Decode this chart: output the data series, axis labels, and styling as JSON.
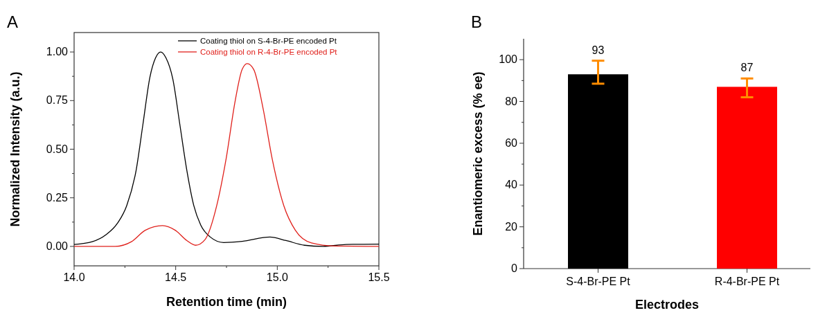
{
  "chart_data": [
    {
      "type": "line",
      "title": "A",
      "xlabel": "Retention time (min)",
      "ylabel": "Normalized Intensity (a.u.)",
      "xlim": [
        14.0,
        15.5
      ],
      "ylim": [
        -0.1,
        1.1
      ],
      "xticks": [
        {
          "value": 14.0,
          "label": "14.0"
        },
        {
          "value": 14.25,
          "label": null
        },
        {
          "value": 14.5,
          "label": "14.5"
        },
        {
          "value": 14.75,
          "label": null
        },
        {
          "value": 15.0,
          "label": "15.0"
        },
        {
          "value": 15.25,
          "label": null
        },
        {
          "value": 15.5,
          "label": "15.5"
        }
      ],
      "yticks": [
        {
          "value": 0,
          "label": "0.00"
        },
        {
          "value": 0.125,
          "label": null
        },
        {
          "value": 0.25,
          "label": "0.25"
        },
        {
          "value": 0.375,
          "label": null
        },
        {
          "value": 0.5,
          "label": "0.50"
        },
        {
          "value": 0.625,
          "label": null
        },
        {
          "value": 0.75,
          "label": "0.75"
        },
        {
          "value": 0.875,
          "label": null
        },
        {
          "value": 1.0,
          "label": "1.00"
        }
      ],
      "legend": "top right",
      "series": [
        {
          "name": "Coating thiol on S-4-Br-PE encoded Pt",
          "color": "#000000",
          "x": [
            14.0,
            14.089,
            14.157,
            14.214,
            14.259,
            14.305,
            14.339,
            14.373,
            14.401,
            14.426,
            14.452,
            14.486,
            14.52,
            14.555,
            14.589,
            14.623,
            14.668,
            14.736,
            14.827,
            14.964,
            15.043,
            15.134,
            15.225,
            15.339,
            15.5
          ],
          "values": [
            0.01,
            0.024,
            0.06,
            0.12,
            0.21,
            0.39,
            0.63,
            0.87,
            0.97,
            1.0,
            0.97,
            0.86,
            0.63,
            0.39,
            0.21,
            0.11,
            0.05,
            0.02,
            0.026,
            0.048,
            0.03,
            0.006,
            0.0,
            0.01,
            0.012
          ]
        },
        {
          "name": "Coating thiol on R-4-Br-PE encoded Pt",
          "color": "#e0201b",
          "x": [
            14.0,
            14.202,
            14.282,
            14.35,
            14.435,
            14.498,
            14.555,
            14.598,
            14.645,
            14.702,
            14.748,
            14.793,
            14.827,
            14.852,
            14.884,
            14.93,
            14.975,
            15.032,
            15.089,
            15.168,
            15.282,
            15.5
          ],
          "values": [
            0.0,
            0.0,
            0.024,
            0.083,
            0.107,
            0.083,
            0.03,
            0.006,
            0.036,
            0.21,
            0.45,
            0.75,
            0.91,
            0.94,
            0.91,
            0.71,
            0.45,
            0.21,
            0.083,
            0.018,
            0.002,
            0.0
          ]
        }
      ]
    },
    {
      "type": "bar",
      "title": "B",
      "xlabel": "Electrodes",
      "ylabel": "Enantiomeric excess (% ee)",
      "categories": [
        "S-4-Br-PE Pt",
        "R-4-Br-PE Pt"
      ],
      "values": [
        93,
        87
      ],
      "colors": [
        "#000000",
        "#ff0000"
      ],
      "errors": [
        [
          88.5,
          99.5
        ],
        [
          82,
          91
        ]
      ],
      "data_labels": true,
      "ylim": [
        0,
        110
      ],
      "yticks": [
        0,
        {
          "value": 10,
          "label": null
        },
        20,
        {
          "value": 30,
          "label": null
        },
        40,
        {
          "value": 50,
          "label": null
        },
        60,
        {
          "value": 70,
          "label": null
        },
        80,
        {
          "value": 90,
          "label": null
        },
        100
      ]
    }
  ]
}
